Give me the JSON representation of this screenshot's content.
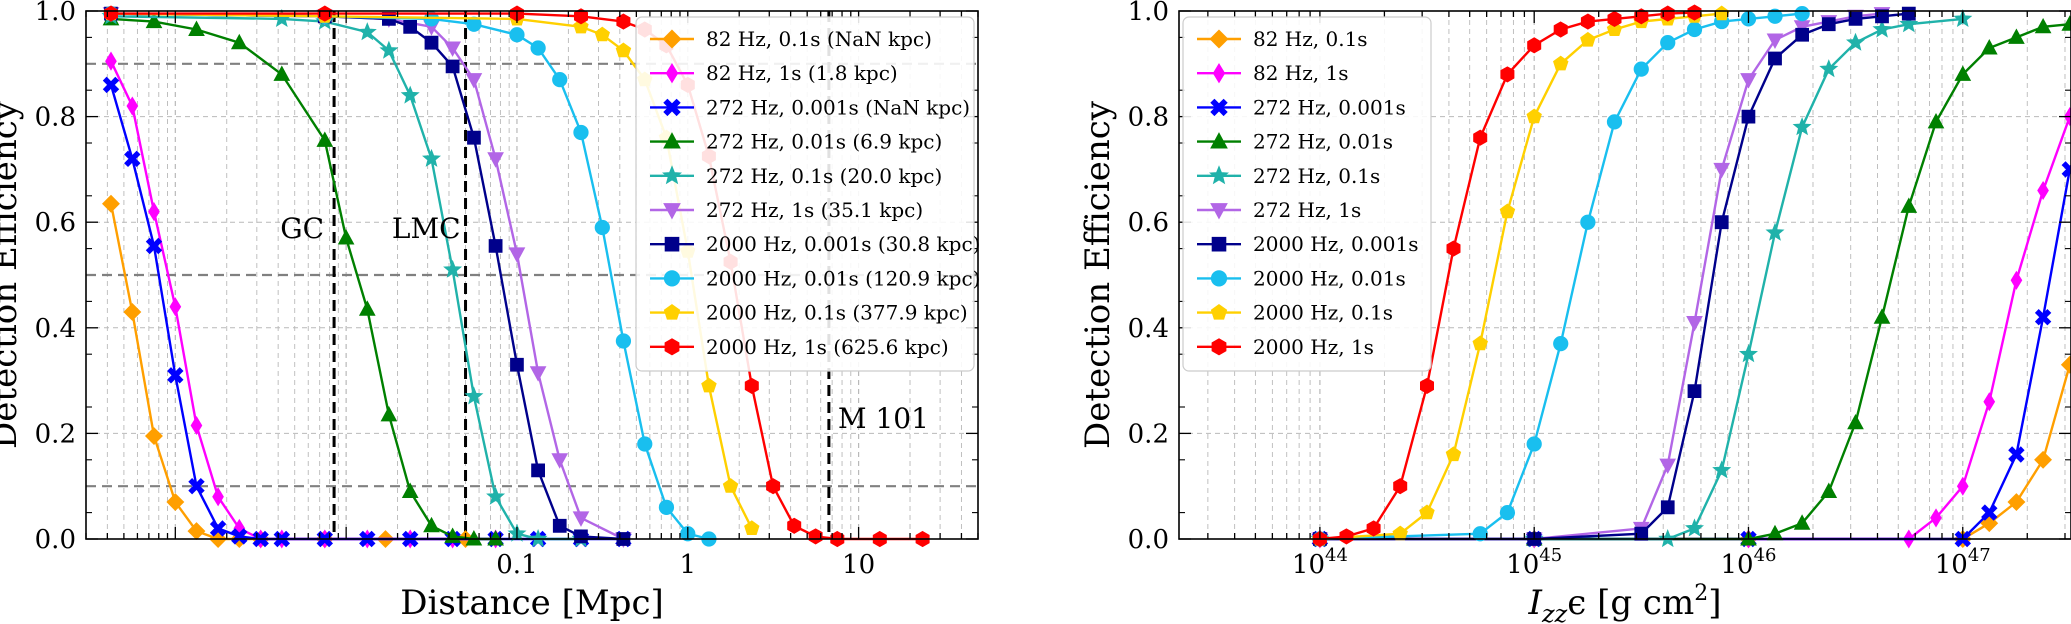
{
  "chart_data": [
    {
      "type": "line",
      "xscale": "log",
      "xlabel": "Distance [Mpc]",
      "ylabel": "Detection Efficiency",
      "xlim": [
        0.0003,
        50
      ],
      "ylim": [
        0.0,
        1.0
      ],
      "xtick_labels": [
        "0.1",
        "1",
        "10"
      ],
      "xtick_values": [
        0.1,
        1,
        10
      ],
      "ytick_labels": [
        "0.0",
        "0.2",
        "0.4",
        "0.6",
        "0.8",
        "1.0"
      ],
      "ytick_values": [
        0.0,
        0.2,
        0.4,
        0.6,
        0.8,
        1.0
      ],
      "grid": true,
      "legend_position": "top-right",
      "hlines": [
        0.1,
        0.5,
        0.9
      ],
      "vlines": [
        {
          "x": 0.0085,
          "label": "GC"
        },
        {
          "x": 0.05,
          "label": "LMC"
        },
        {
          "x": 6.7,
          "label": "M 101"
        }
      ],
      "series": [
        {
          "name": "82 Hz, 0.1s (NaN kpc)",
          "color": "#FF9F00",
          "marker": "diamond",
          "x": [
            0.00042,
            0.00056,
            0.00075,
            0.001,
            0.00133,
            0.00178,
            0.00237,
            0.00316,
            0.0075,
            0.017,
            0.05
          ],
          "y": [
            0.635,
            0.43,
            0.195,
            0.07,
            0.015,
            0.0,
            0.0,
            0.0,
            0.0,
            0.0,
            0.0
          ]
        },
        {
          "name": "82 Hz, 1s (1.8 kpc)",
          "color": "#FF00FF",
          "marker": "thin-diamond",
          "x": [
            0.00042,
            0.00056,
            0.00075,
            0.001,
            0.00133,
            0.00178,
            0.00237,
            0.00316,
            0.0042,
            0.0075,
            0.0133,
            0.0237,
            0.042,
            0.075
          ],
          "y": [
            0.905,
            0.82,
            0.62,
            0.44,
            0.215,
            0.08,
            0.02,
            0.0,
            0.0,
            0.0,
            0.0,
            0.0,
            0.0,
            0.0
          ]
        },
        {
          "name": "272 Hz, 0.001s (NaN kpc)",
          "color": "#0000FF",
          "marker": "x",
          "x": [
            0.00042,
            0.00056,
            0.00075,
            0.001,
            0.00133,
            0.00178,
            0.00237,
            0.00316,
            0.0042,
            0.0075,
            0.0133,
            0.0237,
            0.042,
            0.075,
            0.133,
            0.237,
            0.42
          ],
          "y": [
            0.86,
            0.72,
            0.555,
            0.31,
            0.1,
            0.02,
            0.005,
            0.0,
            0.0,
            0.0,
            0.0,
            0.0,
            0.0,
            0.0,
            0.0,
            0.0,
            0.0
          ]
        },
        {
          "name": "272 Hz, 0.01s (6.9 kpc)",
          "color": "#008000",
          "marker": "triangle-up",
          "x": [
            0.00042,
            0.00075,
            0.00133,
            0.00237,
            0.0042,
            0.0075,
            0.01,
            0.0133,
            0.0178,
            0.0237,
            0.0316,
            0.042,
            0.056,
            0.075
          ],
          "y": [
            0.985,
            0.98,
            0.965,
            0.94,
            0.88,
            0.755,
            0.57,
            0.435,
            0.235,
            0.09,
            0.025,
            0.005,
            0.0,
            0.0
          ]
        },
        {
          "name": "272 Hz, 0.1s (20.0 kpc)",
          "color": "#20B2AA",
          "marker": "star",
          "x": [
            0.00042,
            0.0042,
            0.0075,
            0.0133,
            0.0178,
            0.0237,
            0.0316,
            0.042,
            0.056,
            0.075,
            0.1,
            0.133,
            0.237
          ],
          "y": [
            0.99,
            0.985,
            0.98,
            0.96,
            0.925,
            0.84,
            0.72,
            0.51,
            0.27,
            0.08,
            0.01,
            0.0,
            0.0
          ]
        },
        {
          "name": "272 Hz, 1s (35.1 kpc)",
          "color": "#B266E6",
          "marker": "triangle-down",
          "x": [
            0.00042,
            0.0075,
            0.0178,
            0.0316,
            0.042,
            0.056,
            0.075,
            0.1,
            0.133,
            0.178,
            0.237,
            0.42
          ],
          "y": [
            0.995,
            0.99,
            0.985,
            0.97,
            0.93,
            0.87,
            0.72,
            0.54,
            0.315,
            0.15,
            0.04,
            0.0
          ]
        },
        {
          "name": "2000 Hz, 0.001s (30.8 kpc)",
          "color": "#00008B",
          "marker": "square",
          "x": [
            0.00042,
            0.0075,
            0.0178,
            0.0237,
            0.0316,
            0.042,
            0.056,
            0.075,
            0.1,
            0.133,
            0.178,
            0.237,
            0.42
          ],
          "y": [
            0.995,
            0.99,
            0.985,
            0.97,
            0.94,
            0.895,
            0.76,
            0.555,
            0.33,
            0.13,
            0.025,
            0.005,
            0.0
          ]
        },
        {
          "name": "2000 Hz, 0.01s (120.9 kpc)",
          "color": "#19BFEF",
          "marker": "circle",
          "x": [
            0.00042,
            0.0075,
            0.0316,
            0.056,
            0.1,
            0.133,
            0.178,
            0.237,
            0.316,
            0.42,
            0.56,
            0.75,
            1.0,
            1.33
          ],
          "y": [
            0.995,
            0.99,
            0.985,
            0.975,
            0.955,
            0.93,
            0.87,
            0.77,
            0.59,
            0.375,
            0.18,
            0.06,
            0.01,
            0.0
          ]
        },
        {
          "name": "2000 Hz, 0.1s (377.9 kpc)",
          "color": "#FFD000",
          "marker": "pentagon",
          "x": [
            0.00042,
            0.0075,
            0.1,
            0.237,
            0.316,
            0.42,
            0.56,
            0.75,
            1.0,
            1.33,
            1.78,
            2.37
          ],
          "y": [
            0.995,
            0.99,
            0.985,
            0.97,
            0.955,
            0.925,
            0.87,
            0.76,
            0.545,
            0.29,
            0.1,
            0.02
          ]
        },
        {
          "name": "2000 Hz, 1s (625.6 kpc)",
          "color": "#FF0000",
          "marker": "hexagon",
          "x": [
            0.00042,
            0.0075,
            0.1,
            0.237,
            0.42,
            0.56,
            0.75,
            1.0,
            1.33,
            1.78,
            2.37,
            3.16,
            4.2,
            5.6,
            7.5,
            13.3,
            23.7
          ],
          "y": [
            0.995,
            0.995,
            0.995,
            0.99,
            0.98,
            0.965,
            0.935,
            0.86,
            0.725,
            0.525,
            0.29,
            0.1,
            0.025,
            0.005,
            0.0,
            0.0,
            0.0
          ]
        }
      ]
    },
    {
      "type": "line",
      "xscale": "log",
      "xlabel": "I_zz ε [g cm²]",
      "xlabel_main": "I",
      "xlabel_sub": "zz",
      "xlabel_rest": "ϵ [g cm",
      "xlabel_sup": "2",
      "xlabel_end": "]",
      "ylabel": "Detection Efficiency",
      "xlim": [
        2.2e+43,
        3.2e+47
      ],
      "ylim": [
        0.0,
        1.0
      ],
      "xtick_values": [
        1e+44,
        1e+45,
        1e+46,
        1e+47
      ],
      "xtick_exponents": [
        "44",
        "45",
        "46",
        "47"
      ],
      "xtick_base": "10",
      "ytick_labels": [
        "0.0",
        "0.2",
        "0.4",
        "0.6",
        "0.8",
        "1.0"
      ],
      "ytick_values": [
        0.0,
        0.2,
        0.4,
        0.6,
        0.8,
        1.0
      ],
      "grid": true,
      "legend_position": "top-left",
      "series": [
        {
          "name": "82 Hz, 0.1s",
          "color": "#FF9F00",
          "marker": "diamond",
          "x": [
            1e+44,
            1e+45,
            1e+46,
            1e+47,
            1.33e+47,
            1.78e+47,
            2.37e+47,
            3.16e+47
          ],
          "y": [
            0.0,
            0.0,
            0.0,
            0.0,
            0.03,
            0.07,
            0.15,
            0.33
          ]
        },
        {
          "name": "82 Hz, 1s",
          "color": "#FF00FF",
          "marker": "thin-diamond",
          "x": [
            1e+44,
            1e+45,
            1e+46,
            5.6e+46,
            7.5e+46,
            1e+47,
            1.33e+47,
            1.78e+47,
            2.37e+47,
            3.16e+47
          ],
          "y": [
            0.0,
            0.0,
            0.0,
            0.0,
            0.04,
            0.1,
            0.26,
            0.49,
            0.66,
            0.8
          ]
        },
        {
          "name": "272 Hz, 0.001s",
          "color": "#0000FF",
          "marker": "x",
          "x": [
            1e+44,
            1e+45,
            1e+46,
            1e+47,
            1.33e+47,
            1.78e+47,
            2.37e+47,
            3.16e+47
          ],
          "y": [
            0.0,
            0.0,
            0.0,
            0.0,
            0.05,
            0.16,
            0.42,
            0.7
          ]
        },
        {
          "name": "272 Hz, 0.01s",
          "color": "#008000",
          "marker": "triangle-up",
          "x": [
            1e+45,
            1e+46,
            1.33e+46,
            1.78e+46,
            2.37e+46,
            3.16e+46,
            4.2e+46,
            5.6e+46,
            7.5e+46,
            1e+47,
            1.33e+47,
            1.78e+47,
            2.37e+47,
            3.16e+47
          ],
          "y": [
            0.0,
            0.0,
            0.01,
            0.03,
            0.09,
            0.22,
            0.42,
            0.63,
            0.79,
            0.88,
            0.93,
            0.95,
            0.97,
            0.975
          ]
        },
        {
          "name": "272 Hz, 0.1s",
          "color": "#20B2AA",
          "marker": "star",
          "x": [
            1e+44,
            1e+45,
            4.2e+45,
            5.6e+45,
            7.5e+45,
            1e+46,
            1.33e+46,
            1.78e+46,
            2.37e+46,
            3.16e+46,
            4.2e+46,
            5.6e+46,
            1e+47
          ],
          "y": [
            0.0,
            0.0,
            0.0,
            0.02,
            0.13,
            0.35,
            0.58,
            0.78,
            0.89,
            0.94,
            0.965,
            0.975,
            0.985
          ]
        },
        {
          "name": "272 Hz, 1s",
          "color": "#B266E6",
          "marker": "triangle-down",
          "x": [
            1e+44,
            1e+45,
            3.16e+45,
            4.2e+45,
            5.6e+45,
            7.5e+45,
            1e+46,
            1.33e+46,
            1.78e+46,
            2.37e+46,
            3.16e+46,
            4.2e+46
          ],
          "y": [
            0.0,
            0.0,
            0.02,
            0.14,
            0.41,
            0.7,
            0.87,
            0.945,
            0.97,
            0.98,
            0.99,
            0.995
          ]
        },
        {
          "name": "2000 Hz, 0.001s",
          "color": "#00008B",
          "marker": "square",
          "x": [
            1e+44,
            1e+45,
            3.16e+45,
            4.2e+45,
            5.6e+45,
            7.5e+45,
            1e+46,
            1.33e+46,
            1.78e+46,
            2.37e+46,
            3.16e+46,
            4.2e+46,
            5.6e+46
          ],
          "y": [
            0.0,
            0.0,
            0.01,
            0.06,
            0.28,
            0.6,
            0.8,
            0.91,
            0.955,
            0.975,
            0.985,
            0.99,
            0.995
          ]
        },
        {
          "name": "2000 Hz, 0.01s",
          "color": "#19BFEF",
          "marker": "circle",
          "x": [
            1e+44,
            5.6e+44,
            7.5e+44,
            1e+45,
            1.33e+45,
            1.78e+45,
            2.37e+45,
            3.16e+45,
            4.2e+45,
            5.6e+45,
            7.5e+45,
            1e+46,
            1.33e+46,
            1.78e+46
          ],
          "y": [
            0.0,
            0.01,
            0.05,
            0.18,
            0.37,
            0.6,
            0.79,
            0.89,
            0.94,
            0.965,
            0.98,
            0.985,
            0.99,
            0.995
          ]
        },
        {
          "name": "2000 Hz, 0.1s",
          "color": "#FFD000",
          "marker": "pentagon",
          "x": [
            1e+44,
            2.37e+44,
            3.16e+44,
            4.2e+44,
            5.6e+44,
            7.5e+44,
            1e+45,
            1.33e+45,
            1.78e+45,
            2.37e+45,
            3.16e+45,
            4.2e+45,
            5.6e+45,
            7.5e+45
          ],
          "y": [
            0.0,
            0.01,
            0.05,
            0.16,
            0.37,
            0.62,
            0.8,
            0.9,
            0.945,
            0.965,
            0.98,
            0.985,
            0.99,
            0.995
          ]
        },
        {
          "name": "2000 Hz, 1s",
          "color": "#FF0000",
          "marker": "hexagon",
          "x": [
            1e+44,
            1.33e+44,
            1.78e+44,
            2.37e+44,
            3.16e+44,
            4.2e+44,
            5.6e+44,
            7.5e+44,
            1e+45,
            1.33e+45,
            1.78e+45,
            2.37e+45,
            3.16e+45,
            4.2e+45,
            5.6e+45
          ],
          "y": [
            0.0,
            0.005,
            0.02,
            0.1,
            0.29,
            0.55,
            0.76,
            0.88,
            0.935,
            0.965,
            0.98,
            0.985,
            0.99,
            0.995,
            0.997
          ]
        }
      ]
    }
  ]
}
